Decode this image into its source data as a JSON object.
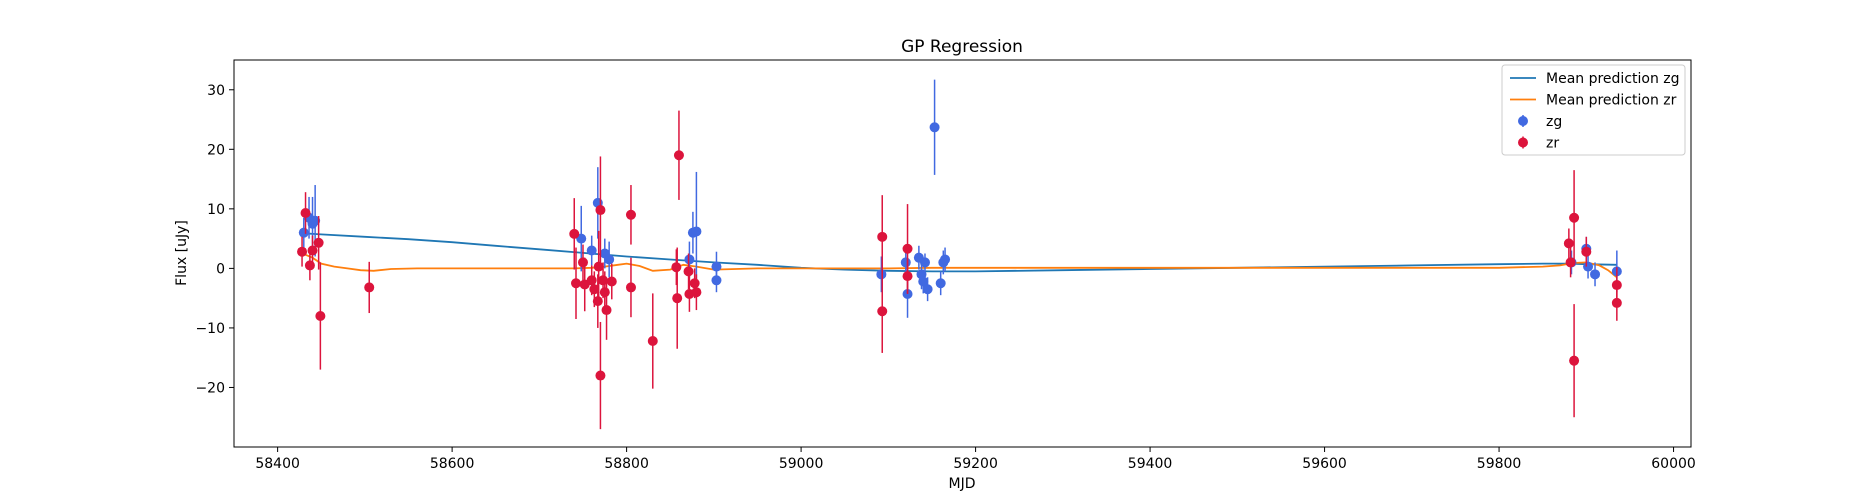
{
  "chart_data": {
    "type": "scatter",
    "title": "GP Regression",
    "xlabel": "MJD",
    "ylabel": "Flux [uJy]",
    "xlim": [
      58350,
      60020
    ],
    "ylim": [
      -30,
      35
    ],
    "xticks": [
      58400,
      58600,
      58800,
      59000,
      59200,
      59400,
      59600,
      59800,
      60000
    ],
    "yticks": [
      -20,
      -10,
      0,
      10,
      20,
      30
    ],
    "grid": false,
    "legend_position": "top-right",
    "series": [
      {
        "name": "Mean prediction zg",
        "kind": "line",
        "color": "#1f77b4",
        "x": [
          58430,
          58450,
          58500,
          58550,
          58600,
          58650,
          58700,
          58750,
          58800,
          58850,
          58900,
          58950,
          59000,
          59050,
          59100,
          59150,
          59200,
          59300,
          59400,
          59500,
          59600,
          59700,
          59800,
          59850,
          59880,
          59900,
          59935
        ],
        "y": [
          5.9,
          5.7,
          5.3,
          4.9,
          4.4,
          3.8,
          3.2,
          2.6,
          2.0,
          1.5,
          1.0,
          0.6,
          0.1,
          -0.2,
          -0.4,
          -0.5,
          -0.5,
          -0.3,
          -0.1,
          0.1,
          0.3,
          0.5,
          0.7,
          0.8,
          0.8,
          0.7,
          0.6
        ]
      },
      {
        "name": "Mean prediction zr",
        "kind": "line",
        "color": "#ff7f0e",
        "x": [
          58430,
          58440,
          58450,
          58465,
          58480,
          58495,
          58510,
          58530,
          58560,
          58600,
          58650,
          58700,
          58740,
          58760,
          58775,
          58790,
          58800,
          58815,
          58830,
          58850,
          58865,
          58880,
          58900,
          58950,
          59000,
          59050,
          59100,
          59150,
          59200,
          59300,
          59400,
          59500,
          59600,
          59700,
          59800,
          59850,
          59870,
          59885,
          59900,
          59915,
          59925,
          59935
        ],
        "y": [
          2.4,
          1.8,
          0.8,
          0.3,
          0.0,
          -0.3,
          -0.4,
          -0.1,
          0.0,
          0.0,
          0.0,
          0.0,
          0.0,
          0.1,
          0.3,
          0.6,
          0.8,
          0.4,
          -0.4,
          -0.2,
          0.6,
          0.3,
          -0.2,
          0.0,
          0.0,
          0.0,
          0.0,
          0.1,
          0.1,
          0.1,
          0.1,
          0.1,
          0.1,
          0.1,
          0.1,
          0.3,
          0.5,
          0.9,
          1.0,
          0.5,
          -0.3,
          -1.5
        ]
      },
      {
        "name": "zg",
        "kind": "errorbar",
        "color": "#4169e1",
        "points": [
          {
            "x": 58430,
            "y": 6.0,
            "err": 2.5
          },
          {
            "x": 58436,
            "y": 8.5,
            "err": 3.5
          },
          {
            "x": 58440,
            "y": 7.5,
            "err": 4.5
          },
          {
            "x": 58443,
            "y": 8.0,
            "err": 6.0
          },
          {
            "x": 58748,
            "y": 5.0,
            "err": 5.5
          },
          {
            "x": 58760,
            "y": 3.0,
            "err": 2.5
          },
          {
            "x": 58767,
            "y": 11.0,
            "err": 6.0
          },
          {
            "x": 58775,
            "y": 2.5,
            "err": 2.5
          },
          {
            "x": 58780,
            "y": 1.5,
            "err": 3.0
          },
          {
            "x": 58872,
            "y": 1.5,
            "err": 3.0
          },
          {
            "x": 58876,
            "y": 6.0,
            "err": 3.5
          },
          {
            "x": 58880,
            "y": 6.2,
            "err": 10.0
          },
          {
            "x": 58903,
            "y": 0.3,
            "err": 2.5
          },
          {
            "x": 58903,
            "y": -2.0,
            "err": 2.0
          },
          {
            "x": 59092,
            "y": -1.0,
            "err": 3.0
          },
          {
            "x": 59120,
            "y": 1.0,
            "err": 2.5
          },
          {
            "x": 59122,
            "y": -4.3,
            "err": 4.0
          },
          {
            "x": 59135,
            "y": 1.8,
            "err": 2.0
          },
          {
            "x": 59138,
            "y": -1.0,
            "err": 2.5
          },
          {
            "x": 59140,
            "y": -2.2,
            "err": 2.0
          },
          {
            "x": 59142,
            "y": 1.0,
            "err": 1.5
          },
          {
            "x": 59145,
            "y": -3.5,
            "err": 2.0
          },
          {
            "x": 59153,
            "y": 23.7,
            "err": 8.0
          },
          {
            "x": 59160,
            "y": -2.5,
            "err": 2.0
          },
          {
            "x": 59163,
            "y": 1.0,
            "err": 2.0
          },
          {
            "x": 59165,
            "y": 1.5,
            "err": 2.0
          },
          {
            "x": 59883,
            "y": 1.0,
            "err": 2.0
          },
          {
            "x": 59900,
            "y": 3.3,
            "err": 2.0
          },
          {
            "x": 59902,
            "y": 0.3,
            "err": 2.0
          },
          {
            "x": 59910,
            "y": -1.0,
            "err": 2.0
          },
          {
            "x": 59935,
            "y": -0.5,
            "err": 3.5
          }
        ]
      },
      {
        "name": "zr",
        "kind": "errorbar",
        "color": "#dc143c",
        "points": [
          {
            "x": 58428,
            "y": 2.8,
            "err": 2.5
          },
          {
            "x": 58432,
            "y": 9.3,
            "err": 3.5
          },
          {
            "x": 58437,
            "y": 0.5,
            "err": 2.5
          },
          {
            "x": 58440,
            "y": 3.0,
            "err": 2.5
          },
          {
            "x": 58447,
            "y": 4.3,
            "err": 4.5
          },
          {
            "x": 58449,
            "y": -8.0,
            "err": 9.0
          },
          {
            "x": 58505,
            "y": -3.2,
            "err": 4.3
          },
          {
            "x": 58740,
            "y": 5.8,
            "err": 6.0
          },
          {
            "x": 58742,
            "y": -2.5,
            "err": 6.0
          },
          {
            "x": 58750,
            "y": 1.0,
            "err": 3.0
          },
          {
            "x": 58752,
            "y": -2.7,
            "err": 4.5
          },
          {
            "x": 58760,
            "y": -2.0,
            "err": 2.5
          },
          {
            "x": 58763,
            "y": -3.5,
            "err": 3.0
          },
          {
            "x": 58767,
            "y": -5.5,
            "err": 4.5
          },
          {
            "x": 58768,
            "y": 0.3,
            "err": 6.0
          },
          {
            "x": 58770,
            "y": 9.8,
            "err": 9.0
          },
          {
            "x": 58770,
            "y": -18.0,
            "err": 9.0
          },
          {
            "x": 58773,
            "y": -2.0,
            "err": 3.0
          },
          {
            "x": 58775,
            "y": -4.0,
            "err": 3.5
          },
          {
            "x": 58777,
            "y": -7.0,
            "err": 5.0
          },
          {
            "x": 58783,
            "y": -2.2,
            "err": 3.0
          },
          {
            "x": 58805,
            "y": 9.0,
            "err": 5.0
          },
          {
            "x": 58805,
            "y": -3.2,
            "err": 5.0
          },
          {
            "x": 58830,
            "y": -12.2,
            "err": 8.0
          },
          {
            "x": 58857,
            "y": 0.2,
            "err": 3.0
          },
          {
            "x": 58858,
            "y": -5.0,
            "err": 8.5
          },
          {
            "x": 58860,
            "y": 19.0,
            "err": 7.5
          },
          {
            "x": 58871,
            "y": -0.5,
            "err": 3.0
          },
          {
            "x": 58872,
            "y": -4.3,
            "err": 3.0
          },
          {
            "x": 58878,
            "y": -2.5,
            "err": 2.5
          },
          {
            "x": 58880,
            "y": -4.0,
            "err": 3.0
          },
          {
            "x": 59093,
            "y": 5.3,
            "err": 7.0
          },
          {
            "x": 59093,
            "y": -7.2,
            "err": 7.0
          },
          {
            "x": 59122,
            "y": 3.3,
            "err": 7.5
          },
          {
            "x": 59122,
            "y": -1.3,
            "err": 3.0
          },
          {
            "x": 59880,
            "y": 4.2,
            "err": 2.5
          },
          {
            "x": 59882,
            "y": 1.0,
            "err": 2.5
          },
          {
            "x": 59886,
            "y": 8.5,
            "err": 8.0
          },
          {
            "x": 59886,
            "y": -15.5,
            "err": 9.5
          },
          {
            "x": 59900,
            "y": 2.8,
            "err": 2.5
          },
          {
            "x": 59935,
            "y": -2.8,
            "err": 3.0
          },
          {
            "x": 59935,
            "y": -5.8,
            "err": 3.0
          }
        ]
      }
    ]
  }
}
